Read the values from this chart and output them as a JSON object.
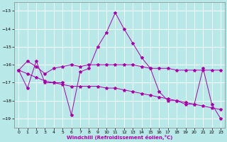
{
  "title": "",
  "xlabel": "Windchill (Refroidissement éolien,°C)",
  "background_color": "#b8e8e8",
  "grid_color": "#ffffff",
  "line_color": "#aa00aa",
  "xlim": [
    -0.5,
    23.5
  ],
  "ylim": [
    -19.5,
    -12.5
  ],
  "yticks": [
    -19,
    -18,
    -17,
    -16,
    -15,
    -14,
    -13
  ],
  "xticks": [
    0,
    1,
    2,
    3,
    4,
    5,
    6,
    7,
    8,
    9,
    10,
    11,
    12,
    13,
    14,
    15,
    16,
    17,
    18,
    19,
    20,
    21,
    22,
    23
  ],
  "hours": [
    0,
    1,
    2,
    3,
    4,
    5,
    6,
    7,
    8,
    9,
    10,
    11,
    12,
    13,
    14,
    15,
    16,
    17,
    18,
    19,
    20,
    21,
    22,
    23
  ],
  "line1": [
    -16.3,
    -17.3,
    -15.8,
    -17.0,
    -17.0,
    -17.0,
    -18.8,
    -16.4,
    -16.2,
    -15.0,
    -14.2,
    -13.1,
    -14.0,
    -14.8,
    -15.6,
    -16.2,
    -17.5,
    -18.0,
    -18.0,
    -18.2,
    -18.2,
    -16.2,
    -18.2,
    -19.0
  ],
  "line2": [
    -16.3,
    -15.8,
    -16.1,
    -16.5,
    -16.2,
    -16.1,
    -16.0,
    -16.1,
    -16.0,
    -16.0,
    -16.0,
    -16.0,
    -16.0,
    -16.0,
    -16.1,
    -16.2,
    -16.2,
    -16.2,
    -16.3,
    -16.3,
    -16.3,
    -16.3,
    -16.3,
    -16.3
  ],
  "line3": [
    -16.3,
    -16.5,
    -16.7,
    -16.9,
    -17.0,
    -17.1,
    -17.2,
    -17.2,
    -17.2,
    -17.2,
    -17.3,
    -17.3,
    -17.4,
    -17.5,
    -17.6,
    -17.7,
    -17.8,
    -17.9,
    -18.0,
    -18.1,
    -18.2,
    -18.3,
    -18.4,
    -18.5
  ]
}
